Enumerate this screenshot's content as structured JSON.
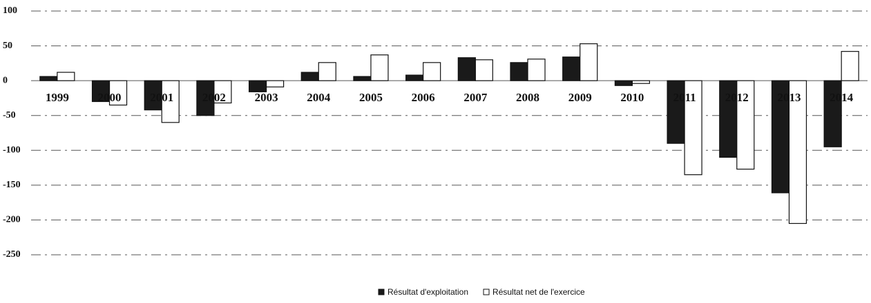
{
  "chart_data": {
    "type": "bar",
    "categories": [
      "1999",
      "2000",
      "2001",
      "2002",
      "2003",
      "2004",
      "2005",
      "2006",
      "2007",
      "2008",
      "2009",
      "2010",
      "2011",
      "2012",
      "2013",
      "2014"
    ],
    "series": [
      {
        "name": "Résultat d'exploitation",
        "color": "#1a1a1a",
        "values": [
          6,
          -30,
          -42,
          -50,
          -16,
          12,
          6,
          8,
          33,
          26,
          34,
          -7,
          -90,
          -110,
          -161,
          -95
        ]
      },
      {
        "name": "Résultat net de l'exercice",
        "color": "#ffffff",
        "values": [
          12,
          -35,
          -60,
          -32,
          -9,
          26,
          37,
          26,
          30,
          31,
          53,
          -4,
          -135,
          -127,
          -205,
          42
        ]
      }
    ],
    "ylim": [
      -250,
      100
    ],
    "yticks": [
      100,
      50,
      0,
      -50,
      -100,
      -150,
      -200,
      -250
    ],
    "grid": true,
    "legend": "bottom"
  }
}
